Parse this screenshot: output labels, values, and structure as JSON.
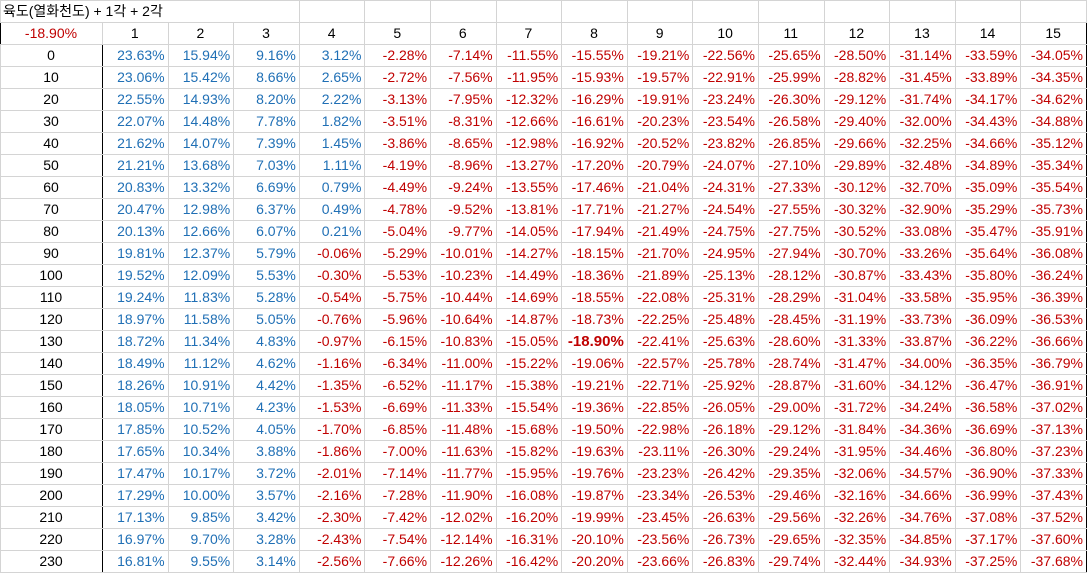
{
  "sheet": {
    "title": "육도(열화천도) + 1각 + 2각",
    "corner_value": "-18.90%",
    "columns": [
      "1",
      "2",
      "3",
      "4",
      "5",
      "6",
      "7",
      "8",
      "9",
      "10",
      "11",
      "12",
      "13",
      "14",
      "15"
    ],
    "highlight": {
      "row": 13,
      "col": 7
    },
    "rows": [
      {
        "label": "0",
        "values": [
          "23.63%",
          "15.94%",
          "9.16%",
          "3.12%",
          "-2.28%",
          "-7.14%",
          "-11.55%",
          "-15.55%",
          "-19.21%",
          "-22.56%",
          "-25.65%",
          "-28.50%",
          "-31.14%",
          "-33.59%",
          "-34.05%"
        ]
      },
      {
        "label": "10",
        "values": [
          "23.06%",
          "15.42%",
          "8.66%",
          "2.65%",
          "-2.72%",
          "-7.56%",
          "-11.95%",
          "-15.93%",
          "-19.57%",
          "-22.91%",
          "-25.99%",
          "-28.82%",
          "-31.45%",
          "-33.89%",
          "-34.35%"
        ]
      },
      {
        "label": "20",
        "values": [
          "22.55%",
          "14.93%",
          "8.20%",
          "2.22%",
          "-3.13%",
          "-7.95%",
          "-12.32%",
          "-16.29%",
          "-19.91%",
          "-23.24%",
          "-26.30%",
          "-29.12%",
          "-31.74%",
          "-34.17%",
          "-34.62%"
        ]
      },
      {
        "label": "30",
        "values": [
          "22.07%",
          "14.48%",
          "7.78%",
          "1.82%",
          "-3.51%",
          "-8.31%",
          "-12.66%",
          "-16.61%",
          "-20.23%",
          "-23.54%",
          "-26.58%",
          "-29.40%",
          "-32.00%",
          "-34.43%",
          "-34.88%"
        ]
      },
      {
        "label": "40",
        "values": [
          "21.62%",
          "14.07%",
          "7.39%",
          "1.45%",
          "-3.86%",
          "-8.65%",
          "-12.98%",
          "-16.92%",
          "-20.52%",
          "-23.82%",
          "-26.85%",
          "-29.66%",
          "-32.25%",
          "-34.66%",
          "-35.12%"
        ]
      },
      {
        "label": "50",
        "values": [
          "21.21%",
          "13.68%",
          "7.03%",
          "1.11%",
          "-4.19%",
          "-8.96%",
          "-13.27%",
          "-17.20%",
          "-20.79%",
          "-24.07%",
          "-27.10%",
          "-29.89%",
          "-32.48%",
          "-34.89%",
          "-35.34%"
        ]
      },
      {
        "label": "60",
        "values": [
          "20.83%",
          "13.32%",
          "6.69%",
          "0.79%",
          "-4.49%",
          "-9.24%",
          "-13.55%",
          "-17.46%",
          "-21.04%",
          "-24.31%",
          "-27.33%",
          "-30.12%",
          "-32.70%",
          "-35.09%",
          "-35.54%"
        ]
      },
      {
        "label": "70",
        "values": [
          "20.47%",
          "12.98%",
          "6.37%",
          "0.49%",
          "-4.78%",
          "-9.52%",
          "-13.81%",
          "-17.71%",
          "-21.27%",
          "-24.54%",
          "-27.55%",
          "-30.32%",
          "-32.90%",
          "-35.29%",
          "-35.73%"
        ]
      },
      {
        "label": "80",
        "values": [
          "20.13%",
          "12.66%",
          "6.07%",
          "0.21%",
          "-5.04%",
          "-9.77%",
          "-14.05%",
          "-17.94%",
          "-21.49%",
          "-24.75%",
          "-27.75%",
          "-30.52%",
          "-33.08%",
          "-35.47%",
          "-35.91%"
        ]
      },
      {
        "label": "90",
        "values": [
          "19.81%",
          "12.37%",
          "5.79%",
          "-0.06%",
          "-5.29%",
          "-10.01%",
          "-14.27%",
          "-18.15%",
          "-21.70%",
          "-24.95%",
          "-27.94%",
          "-30.70%",
          "-33.26%",
          "-35.64%",
          "-36.08%"
        ]
      },
      {
        "label": "100",
        "values": [
          "19.52%",
          "12.09%",
          "5.53%",
          "-0.30%",
          "-5.53%",
          "-10.23%",
          "-14.49%",
          "-18.36%",
          "-21.89%",
          "-25.13%",
          "-28.12%",
          "-30.87%",
          "-33.43%",
          "-35.80%",
          "-36.24%"
        ]
      },
      {
        "label": "110",
        "values": [
          "19.24%",
          "11.83%",
          "5.28%",
          "-0.54%",
          "-5.75%",
          "-10.44%",
          "-14.69%",
          "-18.55%",
          "-22.08%",
          "-25.31%",
          "-28.29%",
          "-31.04%",
          "-33.58%",
          "-35.95%",
          "-36.39%"
        ]
      },
      {
        "label": "120",
        "values": [
          "18.97%",
          "11.58%",
          "5.05%",
          "-0.76%",
          "-5.96%",
          "-10.64%",
          "-14.87%",
          "-18.73%",
          "-22.25%",
          "-25.48%",
          "-28.45%",
          "-31.19%",
          "-33.73%",
          "-36.09%",
          "-36.53%"
        ]
      },
      {
        "label": "130",
        "values": [
          "18.72%",
          "11.34%",
          "4.83%",
          "-0.97%",
          "-6.15%",
          "-10.83%",
          "-15.05%",
          "-18.90%",
          "-22.41%",
          "-25.63%",
          "-28.60%",
          "-31.33%",
          "-33.87%",
          "-36.22%",
          "-36.66%"
        ]
      },
      {
        "label": "140",
        "values": [
          "18.49%",
          "11.12%",
          "4.62%",
          "-1.16%",
          "-6.34%",
          "-11.00%",
          "-15.22%",
          "-19.06%",
          "-22.57%",
          "-25.78%",
          "-28.74%",
          "-31.47%",
          "-34.00%",
          "-36.35%",
          "-36.79%"
        ]
      },
      {
        "label": "150",
        "values": [
          "18.26%",
          "10.91%",
          "4.42%",
          "-1.35%",
          "-6.52%",
          "-11.17%",
          "-15.38%",
          "-19.21%",
          "-22.71%",
          "-25.92%",
          "-28.87%",
          "-31.60%",
          "-34.12%",
          "-36.47%",
          "-36.91%"
        ]
      },
      {
        "label": "160",
        "values": [
          "18.05%",
          "10.71%",
          "4.23%",
          "-1.53%",
          "-6.69%",
          "-11.33%",
          "-15.54%",
          "-19.36%",
          "-22.85%",
          "-26.05%",
          "-29.00%",
          "-31.72%",
          "-34.24%",
          "-36.58%",
          "-37.02%"
        ]
      },
      {
        "label": "170",
        "values": [
          "17.85%",
          "10.52%",
          "4.05%",
          "-1.70%",
          "-6.85%",
          "-11.48%",
          "-15.68%",
          "-19.50%",
          "-22.98%",
          "-26.18%",
          "-29.12%",
          "-31.84%",
          "-34.36%",
          "-36.69%",
          "-37.13%"
        ]
      },
      {
        "label": "180",
        "values": [
          "17.65%",
          "10.34%",
          "3.88%",
          "-1.86%",
          "-7.00%",
          "-11.63%",
          "-15.82%",
          "-19.63%",
          "-23.11%",
          "-26.30%",
          "-29.24%",
          "-31.95%",
          "-34.46%",
          "-36.80%",
          "-37.23%"
        ]
      },
      {
        "label": "190",
        "values": [
          "17.47%",
          "10.17%",
          "3.72%",
          "-2.01%",
          "-7.14%",
          "-11.77%",
          "-15.95%",
          "-19.76%",
          "-23.23%",
          "-26.42%",
          "-29.35%",
          "-32.06%",
          "-34.57%",
          "-36.90%",
          "-37.33%"
        ]
      },
      {
        "label": "200",
        "values": [
          "17.29%",
          "10.00%",
          "3.57%",
          "-2.16%",
          "-7.28%",
          "-11.90%",
          "-16.08%",
          "-19.87%",
          "-23.34%",
          "-26.53%",
          "-29.46%",
          "-32.16%",
          "-34.66%",
          "-36.99%",
          "-37.43%"
        ]
      },
      {
        "label": "210",
        "values": [
          "17.13%",
          "9.85%",
          "3.42%",
          "-2.30%",
          "-7.42%",
          "-12.02%",
          "-16.20%",
          "-19.99%",
          "-23.45%",
          "-26.63%",
          "-29.56%",
          "-32.26%",
          "-34.76%",
          "-37.08%",
          "-37.52%"
        ]
      },
      {
        "label": "220",
        "values": [
          "16.97%",
          "9.70%",
          "3.28%",
          "-2.43%",
          "-7.54%",
          "-12.14%",
          "-16.31%",
          "-20.10%",
          "-23.56%",
          "-26.73%",
          "-29.65%",
          "-32.35%",
          "-34.85%",
          "-37.17%",
          "-37.60%"
        ]
      },
      {
        "label": "230",
        "values": [
          "16.81%",
          "9.55%",
          "3.14%",
          "-2.56%",
          "-7.66%",
          "-12.26%",
          "-16.42%",
          "-20.20%",
          "-23.66%",
          "-26.83%",
          "-29.74%",
          "-32.44%",
          "-34.93%",
          "-37.25%",
          "-37.68%"
        ]
      }
    ],
    "colors": {
      "positive": "#1f6fb5",
      "negative": "#c00000",
      "header": "#000000"
    }
  }
}
